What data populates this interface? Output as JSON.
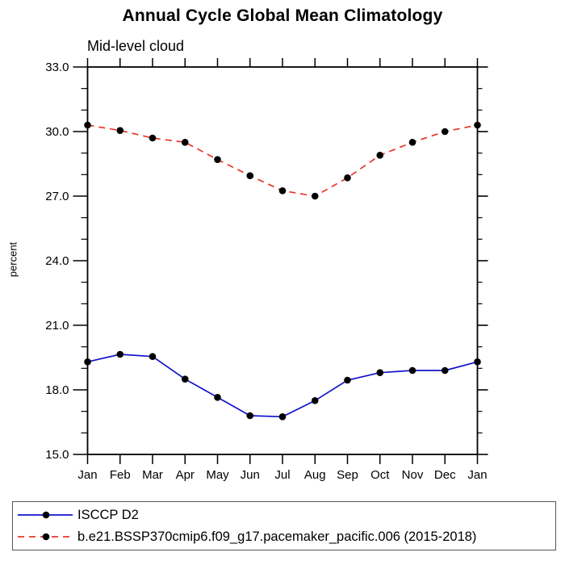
{
  "chart_data": {
    "type": "line",
    "title": "Annual Cycle Global Mean Climatology",
    "subtitle": "Mid-level cloud",
    "ylabel": "percent",
    "x_categories": [
      "Jan",
      "Feb",
      "Mar",
      "Apr",
      "May",
      "Jun",
      "Jul",
      "Aug",
      "Sep",
      "Oct",
      "Nov",
      "Dec",
      "Jan"
    ],
    "ylim": [
      15.0,
      33.0
    ],
    "y_major_ticks": [
      15.0,
      18.0,
      21.0,
      24.0,
      27.0,
      30.0,
      33.0
    ],
    "y_minor_step": 1.0,
    "grid": false,
    "legend_position": "bottom-left-box",
    "axis_color": "#000000",
    "marker_color": "#000000",
    "series": [
      {
        "name": "ISCCP D2",
        "color": "#1212cc",
        "style": "solid",
        "marker": "circle",
        "values": [
          19.3,
          19.65,
          19.55,
          18.5,
          17.65,
          16.8,
          16.75,
          17.5,
          18.45,
          18.8,
          18.9,
          18.9,
          19.3
        ]
      },
      {
        "name": "b.e21.BSSP370cmip6.f09_g17.pacemaker_pacific.006 (2015-2018)",
        "color": "#e8362a",
        "style": "dashed",
        "marker": "circle",
        "values": [
          30.3,
          30.05,
          29.7,
          29.5,
          28.7,
          27.95,
          27.25,
          27.0,
          27.85,
          28.9,
          29.5,
          30.0,
          30.3
        ]
      }
    ]
  }
}
